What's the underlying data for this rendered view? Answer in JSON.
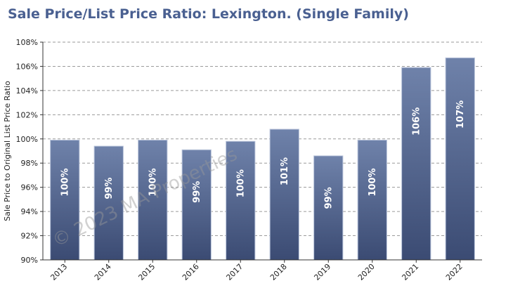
{
  "chart_data": {
    "type": "bar",
    "title": "Sale Price/List Price Ratio: Lexington. (Single Family)",
    "ylabel": "Sale Price to Original List Price Ratio",
    "xlabel": "",
    "categories": [
      "2013",
      "2014",
      "2015",
      "2016",
      "2017",
      "2018",
      "2019",
      "2020",
      "2021",
      "2022"
    ],
    "values": [
      99.9,
      99.4,
      99.9,
      99.1,
      99.8,
      100.8,
      98.6,
      99.9,
      105.9,
      106.7
    ],
    "data_labels": [
      "100%",
      "99%",
      "100%",
      "99%",
      "100%",
      "101%",
      "99%",
      "100%",
      "106%",
      "107%"
    ],
    "ylim": [
      90,
      108
    ],
    "yticks": [
      "90%",
      "92%",
      "94%",
      "96%",
      "98%",
      "100%",
      "102%",
      "104%",
      "106%",
      "108%"
    ],
    "grid": true,
    "bar_color_top": "#6f82aa",
    "bar_color_bottom": "#3b4b73"
  },
  "watermark": "© 2023 MA Properties"
}
